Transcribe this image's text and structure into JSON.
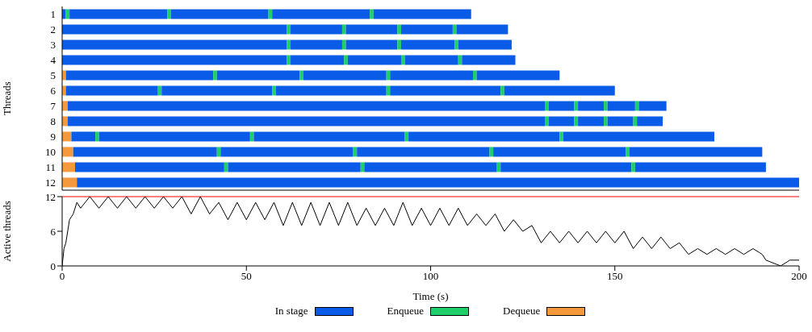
{
  "chart_data": [
    {
      "type": "bar",
      "orientation": "horizontal",
      "stacked": true,
      "ylabel": "Threads",
      "categories": [
        "1",
        "2",
        "3",
        "4",
        "5",
        "6",
        "7",
        "8",
        "9",
        "10",
        "11",
        "12"
      ],
      "xlim": [
        0,
        200
      ],
      "xticks": [
        0,
        50,
        100,
        150,
        200
      ],
      "tick_labels": "y",
      "legend": "bottom",
      "series": [
        {
          "name": "Dequeue",
          "color": "#f59a3c",
          "values": [
            0,
            0,
            0,
            0,
            1,
            1,
            1.5,
            1.5,
            2.5,
            3,
            3.5,
            4
          ]
        },
        {
          "name": "In stage",
          "color": "#0a5ce8",
          "values": [
            1,
            61,
            61,
            61,
            40,
            25,
            129.5,
            129.5,
            6.5,
            39,
            40.5,
            196
          ]
        },
        {
          "name": "Enqueue",
          "color": "#1ecf6a",
          "values": [
            1,
            1,
            1,
            1,
            1,
            1,
            1,
            1,
            1,
            1,
            1,
            0
          ]
        },
        {
          "color": "#0a5ce8",
          "values": [
            26.5,
            14,
            14,
            14.5,
            22.5,
            30,
            7,
            7,
            41,
            36,
            36,
            0
          ]
        },
        {
          "color": "#1ecf6a",
          "values": [
            1,
            1,
            1,
            1,
            1,
            1,
            1,
            1,
            1,
            1,
            1,
            0
          ]
        },
        {
          "color": "#0a5ce8",
          "values": [
            26.5,
            14,
            14,
            14.5,
            22.5,
            30,
            7,
            7,
            41,
            36,
            36,
            0
          ]
        },
        {
          "color": "#1ecf6a",
          "values": [
            1,
            1,
            1,
            1,
            1,
            1,
            1,
            1,
            1,
            1,
            1,
            0
          ]
        },
        {
          "color": "#0a5ce8",
          "values": [
            26.5,
            14,
            14.5,
            14.5,
            22.5,
            30,
            7.5,
            7,
            41,
            36,
            35.5,
            0
          ]
        },
        {
          "color": "#1ecf6a",
          "values": [
            1,
            1,
            1,
            1,
            1,
            1,
            1,
            1,
            1,
            1,
            1,
            0
          ]
        },
        {
          "color": "#0a5ce8",
          "values": [
            26.5,
            14,
            14.5,
            14.5,
            22.5,
            30,
            7.5,
            7,
            41,
            36,
            35.5,
            0
          ]
        }
      ]
    },
    {
      "type": "line",
      "xlabel": "Time (s)",
      "ylabel": "Active threads",
      "xlim": [
        0,
        200
      ],
      "xticks": [
        0,
        50,
        100,
        150,
        200
      ],
      "ylim": [
        0,
        12
      ],
      "yticks": [
        0,
        6,
        12
      ],
      "marker": "none",
      "ref_lines": [
        {
          "axis": "y",
          "value": 12,
          "color": "#ff0000"
        }
      ],
      "series": [
        {
          "color": "#000000",
          "x": [
            0,
            0.5,
            1,
            1.5,
            2,
            3,
            4,
            5,
            7.5,
            10,
            12.5,
            15,
            17.5,
            20,
            22.5,
            25,
            27.5,
            30,
            32.5,
            35,
            37.5,
            40,
            42.5,
            45,
            47.5,
            50,
            52.5,
            55,
            57.5,
            60,
            62.5,
            65,
            67.5,
            70,
            72.5,
            75,
            77.5,
            80,
            82.5,
            85,
            87.5,
            90,
            92.5,
            95,
            97.5,
            100,
            102.5,
            105,
            107.5,
            110,
            112.5,
            115,
            117.5,
            120,
            122.5,
            125,
            127.5,
            130,
            132.5,
            135,
            137.5,
            140,
            142.5,
            145,
            147.5,
            150,
            152.5,
            155,
            157.5,
            160,
            162.5,
            165,
            167.5,
            170,
            172.5,
            175,
            177.5,
            180,
            182.5,
            185,
            187.5,
            190,
            191,
            195,
            197.5,
            200
          ],
          "values": [
            0,
            3,
            4,
            6,
            8,
            9,
            11,
            10,
            12,
            10,
            12,
            10,
            12,
            10,
            12,
            10,
            12,
            10,
            12,
            9,
            12,
            9,
            11,
            8,
            11,
            8,
            11,
            8,
            11,
            7,
            11,
            7,
            11,
            7,
            11,
            7,
            11,
            7,
            10,
            7,
            10,
            7,
            11,
            7,
            10,
            7,
            10,
            7,
            10,
            7,
            9,
            7,
            9,
            6,
            8,
            6,
            7,
            4,
            6,
            4,
            6,
            4,
            6,
            4,
            6,
            4,
            6,
            3,
            5,
            3,
            5,
            3,
            4,
            2,
            3,
            2,
            3,
            2,
            3,
            2,
            3,
            2,
            1,
            0,
            1,
            1
          ]
        }
      ]
    }
  ]
}
